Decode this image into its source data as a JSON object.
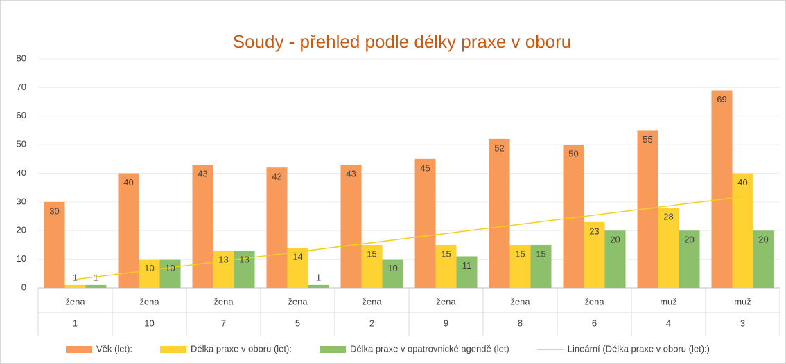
{
  "chart_data": {
    "type": "bar",
    "title": "Soudy - přehled podle délky praxe v oboru",
    "categories": [
      [
        "žena",
        "1"
      ],
      [
        "žena",
        "10"
      ],
      [
        "žena",
        "7"
      ],
      [
        "žena",
        "5"
      ],
      [
        "žena",
        "2"
      ],
      [
        "žena",
        "9"
      ],
      [
        "žena",
        "8"
      ],
      [
        "žena",
        "6"
      ],
      [
        "muž",
        "4"
      ],
      [
        "muž",
        "3"
      ]
    ],
    "series": [
      {
        "name": "Věk (let):",
        "color": "#f79a5a",
        "values": [
          30,
          40,
          43,
          42,
          43,
          45,
          52,
          50,
          55,
          69
        ]
      },
      {
        "name": "Délka praxe v oboru (let):",
        "color": "#ffd233",
        "values": [
          1,
          10,
          13,
          14,
          15,
          15,
          15,
          23,
          28,
          40
        ]
      },
      {
        "name": "Délka praxe v opatrovnické agendě (let)",
        "color": "#8cc06b",
        "values": [
          1,
          10,
          13,
          1,
          10,
          11,
          15,
          20,
          20,
          20
        ]
      }
    ],
    "trendline": {
      "name": "Lineární (Délka praxe v oboru (let):)",
      "type": "linear",
      "series": 1,
      "color": "#f2d11c"
    },
    "ylim": [
      0,
      80
    ],
    "yticks": [
      0,
      10,
      20,
      30,
      40,
      50,
      60,
      70,
      80
    ],
    "grid": true,
    "legend": "bottom"
  }
}
